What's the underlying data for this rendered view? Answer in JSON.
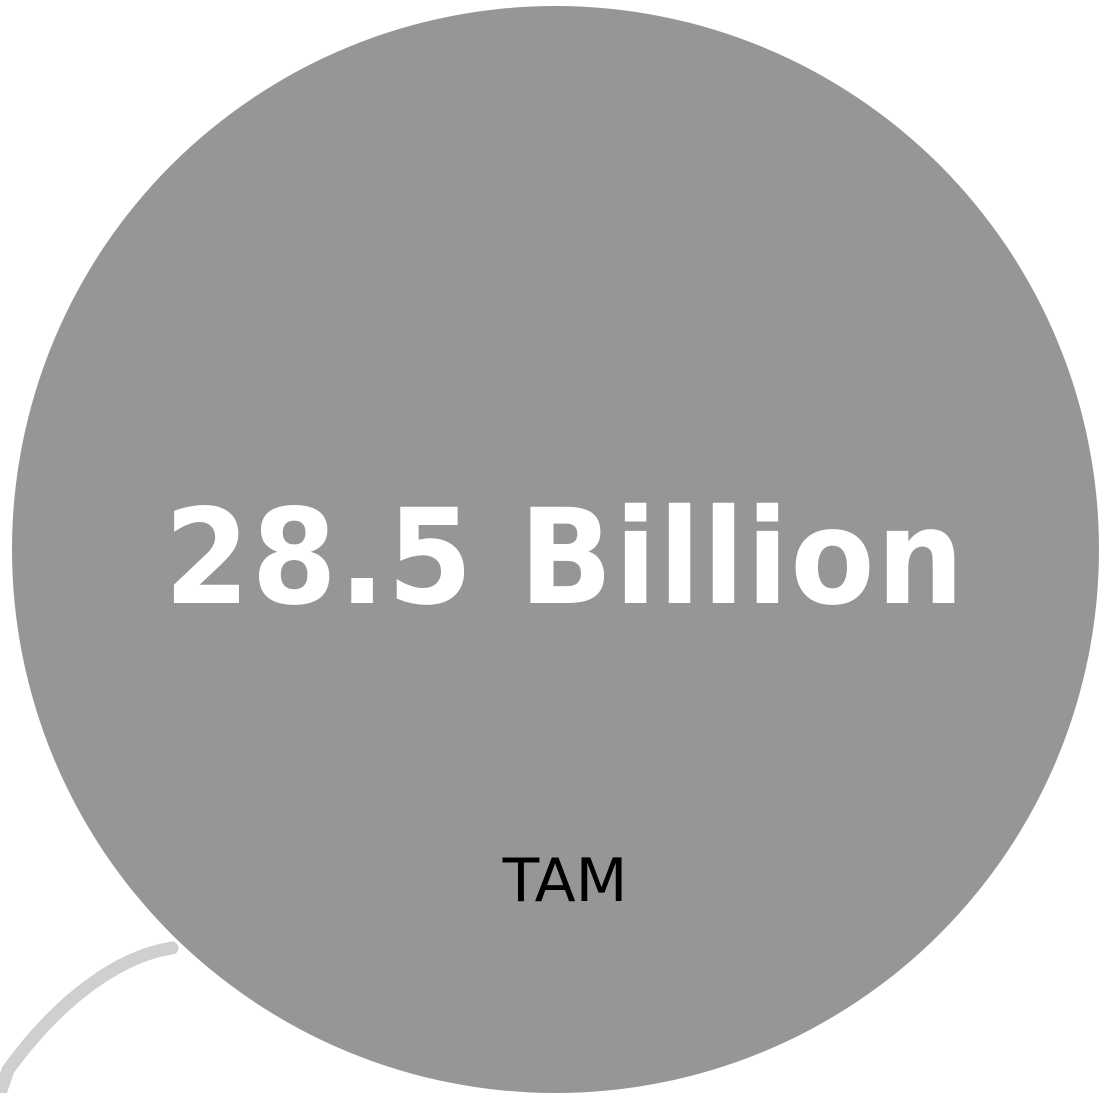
{
  "metric": {
    "value": "28.5 Billion",
    "label": "TAM"
  },
  "colors": {
    "circle_fill": "#969696",
    "value_text": "#ffffff",
    "label_text": "#000000",
    "arc_stroke": "#cfcfcf"
  }
}
